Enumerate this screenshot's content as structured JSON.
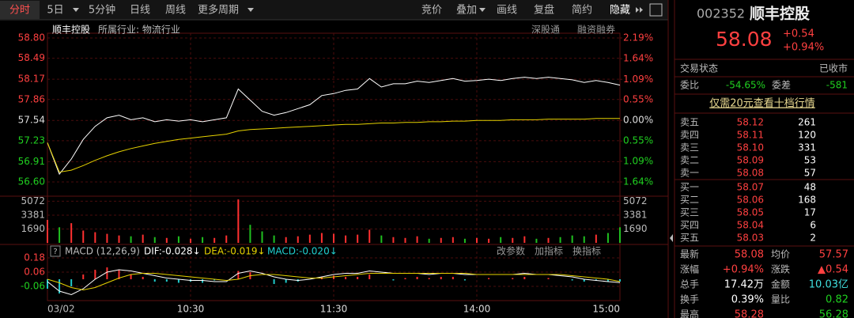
{
  "toolbar": {
    "left_tabs": [
      "分时",
      "5日",
      "5分钟",
      "日线",
      "周线",
      "更多周期"
    ],
    "right_tabs": [
      "竞价",
      "叠加",
      "画线",
      "复盘",
      "简约",
      "隐藏"
    ]
  },
  "chart_data": [
    {
      "type": "line",
      "title": "顺丰控股",
      "subtitle": "所属行业: 物流行业",
      "badges": [
        "深股通",
        "融资融券"
      ],
      "series": [
        {
          "color": "#ffffff",
          "values": [
            57.2,
            56.72,
            56.95,
            57.25,
            57.45,
            57.58,
            57.62,
            57.55,
            57.58,
            57.52,
            57.55,
            57.53,
            57.55,
            57.52,
            57.55,
            57.58,
            58.02,
            57.85,
            57.68,
            57.62,
            57.66,
            57.72,
            57.78,
            57.92,
            57.95,
            58.0,
            58.02,
            58.18,
            58.05,
            58.1,
            58.1,
            58.14,
            58.12,
            58.15,
            58.18,
            58.14,
            58.15,
            58.17,
            58.15,
            58.18,
            58.2,
            58.18,
            58.2,
            58.18,
            58.16,
            58.12,
            58.15,
            58.12,
            58.08
          ]
        },
        {
          "color": "#e6d200",
          "values": [
            57.2,
            56.75,
            56.78,
            56.85,
            56.93,
            57.0,
            57.06,
            57.11,
            57.15,
            57.19,
            57.22,
            57.25,
            57.27,
            57.29,
            57.31,
            57.33,
            57.38,
            57.4,
            57.41,
            57.42,
            57.43,
            57.44,
            57.45,
            57.46,
            57.47,
            57.48,
            57.48,
            57.49,
            57.5,
            57.5,
            57.51,
            57.51,
            57.52,
            57.52,
            57.53,
            57.53,
            57.54,
            57.54,
            57.54,
            57.55,
            57.55,
            57.55,
            57.56,
            57.56,
            57.56,
            57.56,
            57.57,
            57.57,
            57.57
          ]
        }
      ],
      "ylim": [
        56.6,
        58.8
      ],
      "yticks": [
        {
          "value": 58.8,
          "label": "58.80"
        },
        58.49,
        58.17,
        57.86,
        57.54,
        57.23,
        56.91,
        {
          "value": 56.6,
          "label": "56.60"
        }
      ],
      "ytick_colors": [
        "#ff4040",
        "#ff4040",
        "#ff4040",
        "#ff4040",
        "#dddddd",
        "#20d020",
        "#20d020",
        "#20d020"
      ],
      "y2lim": [
        -1.64,
        2.19
      ],
      "y2ticks": [
        {
          "value": 2.19,
          "label": "2.19%"
        },
        {
          "value": 1.64,
          "label": "1.64%"
        },
        {
          "value": 1.09,
          "label": "1.09%"
        },
        {
          "value": 0.55,
          "label": "0.55%"
        },
        {
          "value": 0,
          "label": "0.00%"
        },
        {
          "value": -0.55,
          "label": "0.55%"
        },
        {
          "value": -1.09,
          "label": "1.09%"
        },
        {
          "value": -1.64,
          "label": "1.64%"
        }
      ],
      "y2tick_colors": [
        "#ff4040",
        "#ff4040",
        "#ff4040",
        "#ff4040",
        "#dddddd",
        "#20d020",
        "#20d020",
        "#20d020"
      ],
      "xticks": [
        {
          "value": 0,
          "label": "03/02"
        },
        {
          "value": 12,
          "label": "10:30"
        },
        {
          "value": 24,
          "label": "11:30"
        },
        {
          "value": 36,
          "label": "14:00"
        },
        {
          "value": 48,
          "label": "15:00"
        }
      ],
      "grid": true
    },
    {
      "type": "bar",
      "up_color": "#ff3030",
      "down_color": "#20c020",
      "values": [
        2800,
        1900,
        2400,
        1500,
        1300,
        1100,
        900,
        800,
        1000,
        700,
        600,
        800,
        500,
        700,
        600,
        900,
        5300,
        2200,
        1400,
        900,
        700,
        800,
        1000,
        1200,
        1100,
        900,
        1000,
        1600,
        900,
        700,
        600,
        800,
        500,
        600,
        700,
        500,
        600,
        500,
        700,
        600,
        800,
        500,
        600,
        700,
        900,
        800,
        1000,
        1200,
        1900
      ],
      "ylim": [
        0,
        5500
      ],
      "yticks": [
        5072,
        3381,
        1690
      ]
    },
    {
      "type": "macd",
      "title": "MACD (12,26,9)",
      "readouts": [
        "DIF:-0.028↓",
        "DEA:-0.019↓",
        "MACD:-0.020↓"
      ],
      "readout_colors": [
        "#ffffff",
        "#e6d200",
        "#20d0d0"
      ],
      "buttons": [
        "改参数",
        "加指标",
        "换指标"
      ],
      "histogram": [
        -0.08,
        -0.12,
        -0.06,
        0.04,
        0.08,
        0.1,
        0.08,
        0.04,
        0.02,
        -0.02,
        -0.02,
        -0.03,
        -0.02,
        -0.03,
        -0.01,
        0.0,
        0.07,
        0.06,
        0.0,
        -0.04,
        -0.03,
        -0.02,
        0.0,
        0.02,
        0.03,
        0.02,
        0.02,
        0.04,
        0.0,
        -0.01,
        0.01,
        0.02,
        0.01,
        0.02,
        0.02,
        -0.01,
        0.0,
        0.01,
        0.0,
        0.01,
        0.02,
        0.0,
        0.01,
        0.0,
        -0.01,
        -0.02,
        -0.01,
        -0.02,
        -0.02
      ],
      "up_color": "#ff3030",
      "down_color": "#20c8c8",
      "series": [
        {
          "color": "#ffffff",
          "values": [
            -0.02,
            -0.1,
            -0.13,
            -0.08,
            0.0,
            0.06,
            0.08,
            0.07,
            0.05,
            0.03,
            0.01,
            0.0,
            -0.01,
            -0.01,
            -0.02,
            -0.02,
            0.05,
            0.07,
            0.05,
            0.02,
            0.0,
            -0.01,
            0.0,
            0.02,
            0.04,
            0.05,
            0.05,
            0.07,
            0.06,
            0.05,
            0.05,
            0.05,
            0.04,
            0.05,
            0.05,
            0.04,
            0.04,
            0.04,
            0.04,
            0.04,
            0.05,
            0.04,
            0.04,
            0.03,
            0.02,
            0.0,
            -0.01,
            -0.02,
            -0.028
          ]
        },
        {
          "color": "#e6d200",
          "values": [
            0.0,
            -0.03,
            -0.07,
            -0.09,
            -0.07,
            -0.03,
            0.01,
            0.04,
            0.05,
            0.05,
            0.04,
            0.03,
            0.02,
            0.01,
            0.0,
            -0.01,
            0.0,
            0.03,
            0.04,
            0.04,
            0.03,
            0.02,
            0.01,
            0.01,
            0.02,
            0.03,
            0.04,
            0.05,
            0.05,
            0.05,
            0.05,
            0.05,
            0.05,
            0.05,
            0.05,
            0.05,
            0.04,
            0.04,
            0.04,
            0.04,
            0.04,
            0.04,
            0.04,
            0.04,
            0.03,
            0.02,
            0.01,
            0.0,
            -0.019
          ]
        }
      ],
      "ylim": [
        -0.18,
        0.22
      ],
      "yticks": [
        0.18,
        0.06,
        -0.06
      ]
    }
  ],
  "quote": {
    "code": "002352",
    "name": "顺丰控股",
    "price": "58.08",
    "change": "+0.54",
    "change_pct": "+0.94%",
    "status_label": "交易状态",
    "status": "已收市",
    "ratio_label": "委比",
    "ratio": "-54.65%",
    "diff_label": "委差",
    "diff": "-581",
    "promo": "仅需20元查看十档行情",
    "asks": [
      [
        "卖五",
        "58.12",
        "261"
      ],
      [
        "卖四",
        "58.11",
        "120"
      ],
      [
        "卖三",
        "58.10",
        "331"
      ],
      [
        "卖二",
        "58.09",
        "53"
      ],
      [
        "卖一",
        "58.08",
        "57"
      ]
    ],
    "bids": [
      [
        "买一",
        "58.07",
        "48"
      ],
      [
        "买二",
        "58.06",
        "168"
      ],
      [
        "买三",
        "58.05",
        "17"
      ],
      [
        "买四",
        "58.04",
        "6"
      ],
      [
        "买五",
        "58.03",
        "2"
      ]
    ],
    "stats_left": [
      {
        "label": "最新",
        "value": "58.08",
        "color": "#ff4040"
      },
      {
        "label": "涨幅",
        "value": "+0.94%",
        "color": "#ff4040"
      },
      {
        "label": "总手",
        "value": "17.42万",
        "color": "#ffffff"
      },
      {
        "label": "换手",
        "value": "0.39%",
        "color": "#ffffff"
      },
      {
        "label": "最高",
        "value": "58.28",
        "color": "#ff4040"
      }
    ],
    "stats_right": [
      {
        "label": "均价",
        "value": "57.57",
        "color": "#ff4040"
      },
      {
        "label": "涨跌",
        "value": "▲0.54",
        "color": "#ff4040"
      },
      {
        "label": "金额",
        "value": "10.03亿",
        "color": "#40e0e0"
      },
      {
        "label": "量比",
        "value": "0.82",
        "color": "#20d020"
      },
      {
        "value": "56.28",
        "color": "#20d020"
      }
    ]
  }
}
